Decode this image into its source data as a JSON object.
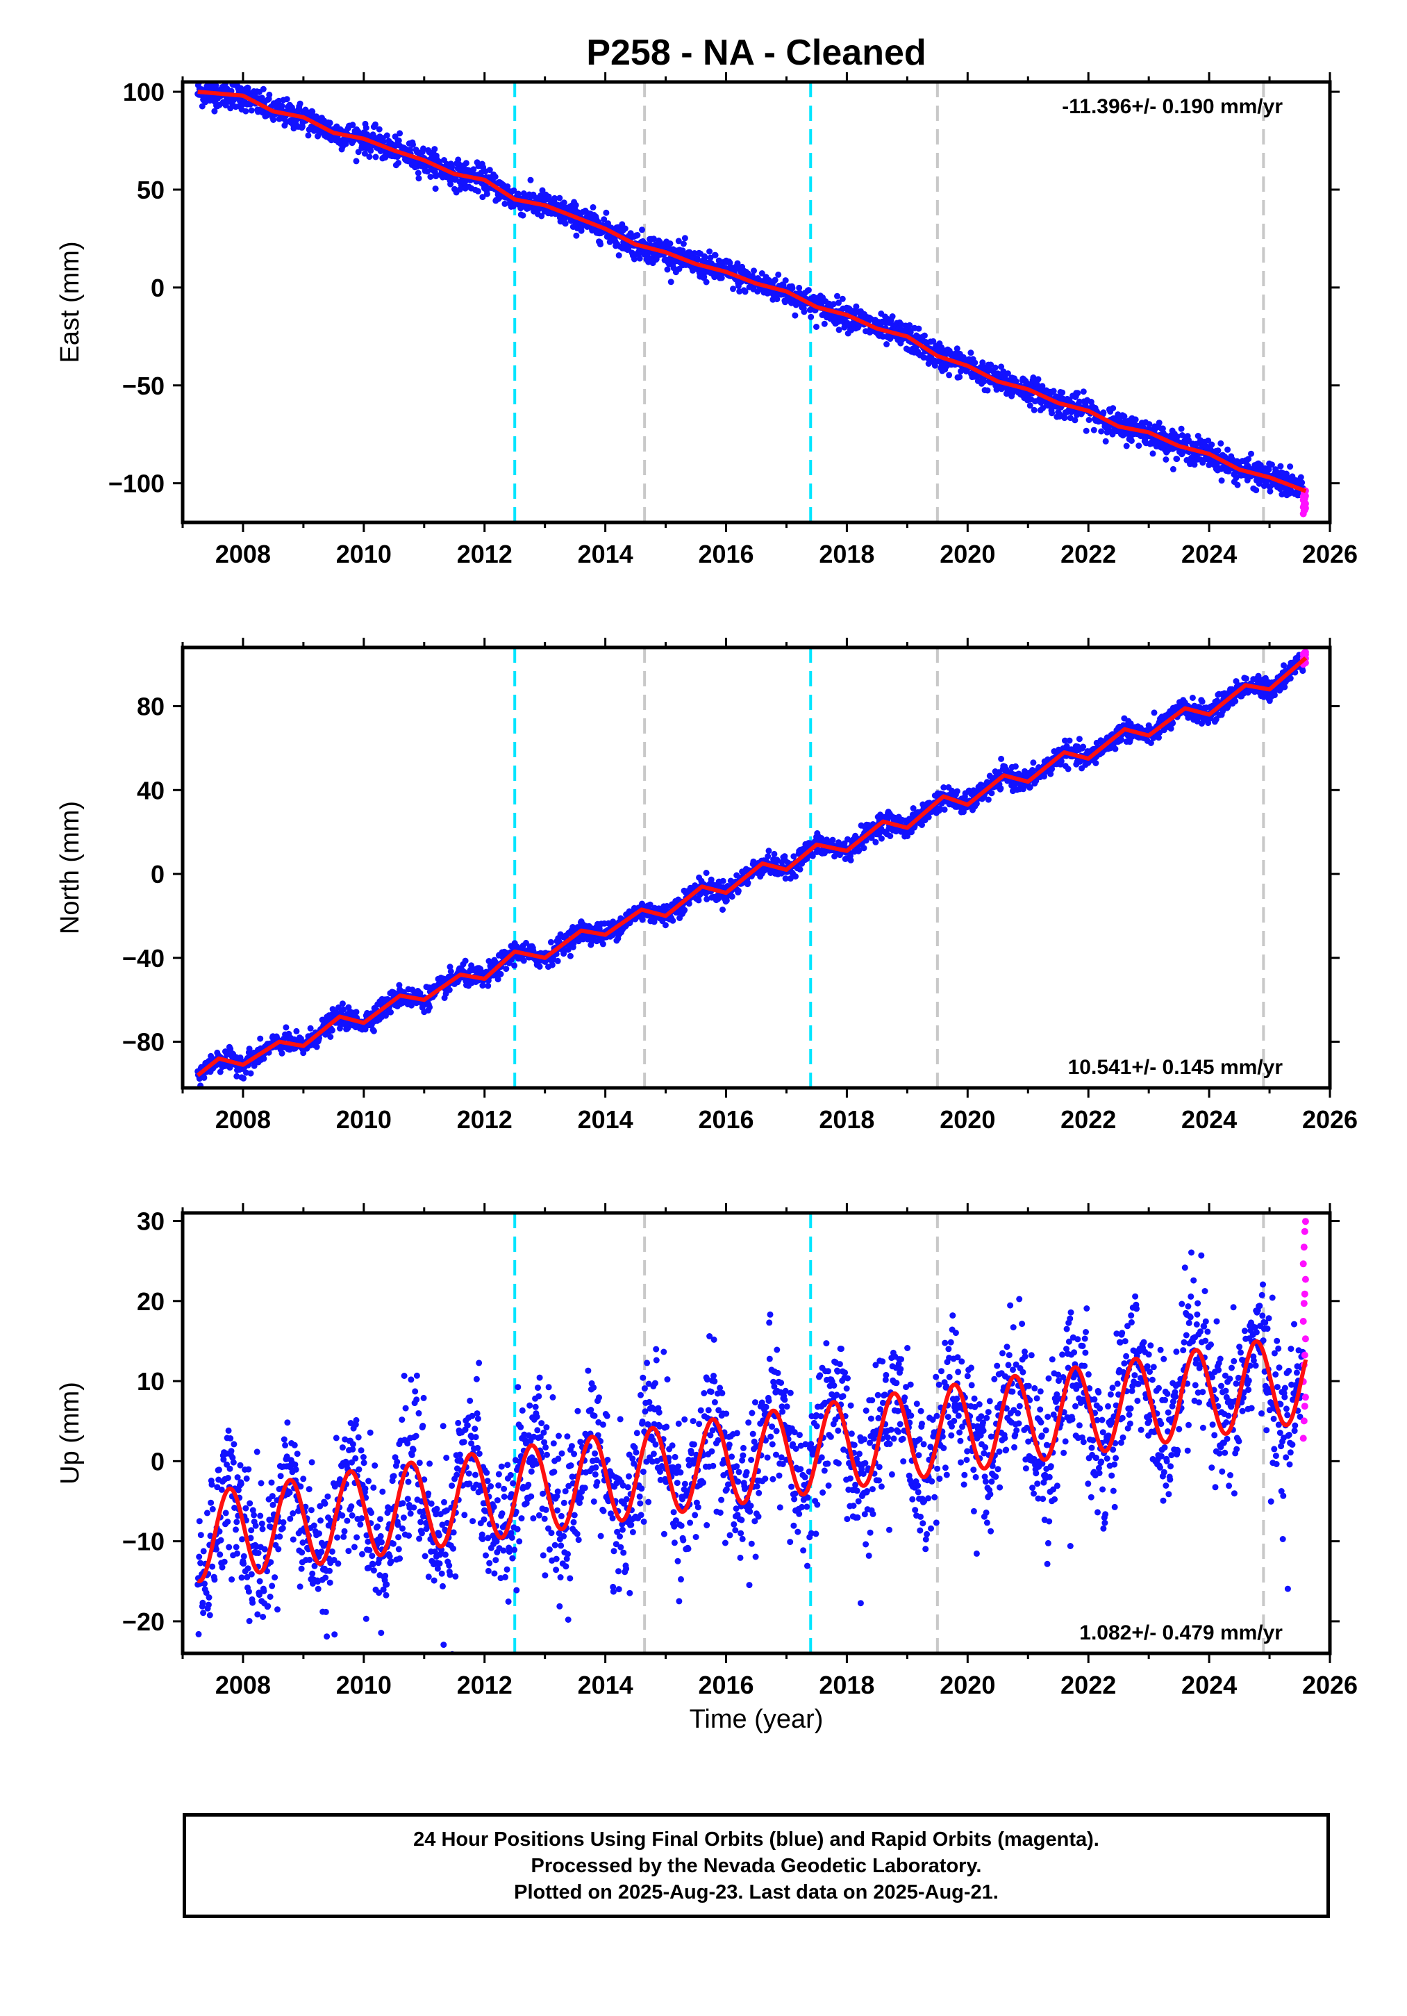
{
  "title": "P258  - NA - Cleaned",
  "colors": {
    "final": "#1212ff",
    "rapid": "#ff10ff",
    "model": "#ff1010",
    "cyan": "#00e5ff",
    "gray": "#c8c8c8"
  },
  "footer": {
    "line1": "24 Hour Positions Using Final Orbits (blue) and Rapid Orbits (magenta).",
    "line2": "Processed by the Nevada Geodetic Laboratory.",
    "line3": "Plotted on 2025-Aug-23. Last data on 2025-Aug-21."
  },
  "chart_data": [
    {
      "type": "scatter",
      "component": "east",
      "ylabel": "East (mm)",
      "xlabel": "",
      "xlim": [
        2007.0,
        2026.0
      ],
      "ylim": [
        -120,
        105
      ],
      "xticks": [
        "2008",
        "2010",
        "2012",
        "2014",
        "2016",
        "2018",
        "2020",
        "2022",
        "2024",
        "2026"
      ],
      "yticks": [
        "100",
        "50",
        "0",
        "−50",
        "−100"
      ],
      "ytick_values": [
        100,
        50,
        0,
        -50,
        -100
      ],
      "rate_label": "-11.396+/- 0.190 mm/yr",
      "rate_position": "top-right",
      "model_points": [
        [
          2007.25,
          100
        ],
        [
          2008.0,
          98
        ],
        [
          2008.5,
          90
        ],
        [
          2009.0,
          87
        ],
        [
          2009.5,
          79
        ],
        [
          2010.0,
          76
        ],
        [
          2010.5,
          70
        ],
        [
          2011.0,
          65
        ],
        [
          2011.5,
          58
        ],
        [
          2012.0,
          55
        ],
        [
          2012.5,
          45
        ],
        [
          2013.0,
          42
        ],
        [
          2013.5,
          36
        ],
        [
          2014.0,
          30
        ],
        [
          2014.5,
          22
        ],
        [
          2015.0,
          18
        ],
        [
          2015.5,
          12
        ],
        [
          2016.0,
          8
        ],
        [
          2016.5,
          2
        ],
        [
          2017.0,
          -2
        ],
        [
          2017.5,
          -10
        ],
        [
          2018.0,
          -14
        ],
        [
          2018.5,
          -21
        ],
        [
          2019.0,
          -25
        ],
        [
          2019.5,
          -35
        ],
        [
          2020.0,
          -40
        ],
        [
          2020.5,
          -48
        ],
        [
          2021.0,
          -52
        ],
        [
          2021.5,
          -59
        ],
        [
          2022.0,
          -63
        ],
        [
          2022.5,
          -71
        ],
        [
          2023.0,
          -74
        ],
        [
          2023.5,
          -81
        ],
        [
          2024.0,
          -85
        ],
        [
          2024.5,
          -93
        ],
        [
          2025.0,
          -97
        ],
        [
          2025.6,
          -104
        ]
      ],
      "rapid_range": [
        -115,
        -104
      ],
      "noise": 3.5
    },
    {
      "type": "scatter",
      "component": "north",
      "ylabel": "North (mm)",
      "xlabel": "",
      "xlim": [
        2007.0,
        2026.0
      ],
      "ylim": [
        -102,
        108
      ],
      "xticks": [
        "2008",
        "2010",
        "2012",
        "2014",
        "2016",
        "2018",
        "2020",
        "2022",
        "2024",
        "2026"
      ],
      "yticks": [
        "80",
        "40",
        "0",
        "−40",
        "−80"
      ],
      "ytick_values": [
        80,
        40,
        0,
        -40,
        -80
      ],
      "rate_label": "10.541+/- 0.145 mm/yr",
      "rate_position": "bottom-right",
      "model_points": [
        [
          2007.25,
          -96
        ],
        [
          2007.6,
          -88
        ],
        [
          2008.0,
          -91
        ],
        [
          2008.6,
          -80
        ],
        [
          2009.0,
          -82
        ],
        [
          2009.6,
          -68
        ],
        [
          2010.0,
          -71
        ],
        [
          2010.6,
          -58
        ],
        [
          2011.0,
          -60
        ],
        [
          2011.6,
          -48
        ],
        [
          2012.0,
          -50
        ],
        [
          2012.5,
          -37
        ],
        [
          2013.0,
          -40
        ],
        [
          2013.6,
          -27
        ],
        [
          2014.0,
          -29
        ],
        [
          2014.6,
          -17
        ],
        [
          2015.0,
          -20
        ],
        [
          2015.6,
          -6
        ],
        [
          2016.0,
          -9
        ],
        [
          2016.6,
          5
        ],
        [
          2017.0,
          2
        ],
        [
          2017.5,
          14
        ],
        [
          2018.0,
          11
        ],
        [
          2018.6,
          25
        ],
        [
          2019.0,
          22
        ],
        [
          2019.6,
          37
        ],
        [
          2020.0,
          33
        ],
        [
          2020.6,
          47
        ],
        [
          2021.0,
          44
        ],
        [
          2021.6,
          58
        ],
        [
          2022.0,
          55
        ],
        [
          2022.6,
          69
        ],
        [
          2023.0,
          66
        ],
        [
          2023.6,
          79
        ],
        [
          2024.0,
          76
        ],
        [
          2024.6,
          90
        ],
        [
          2025.0,
          88
        ],
        [
          2025.6,
          103
        ]
      ],
      "rapid_range": [
        100,
        106
      ],
      "noise": 2.5
    },
    {
      "type": "scatter",
      "component": "up",
      "ylabel": "Up (mm)",
      "xlabel": "Time (year)",
      "xlim": [
        2007.0,
        2026.0
      ],
      "ylim": [
        -24,
        31
      ],
      "xticks": [
        "2008",
        "2010",
        "2012",
        "2014",
        "2016",
        "2018",
        "2020",
        "2022",
        "2024",
        "2026"
      ],
      "yticks": [
        "30",
        "20",
        "10",
        "0",
        "−10",
        "−20"
      ],
      "ytick_values": [
        30,
        20,
        10,
        0,
        -10,
        -20
      ],
      "rate_label": "1.082+/- 0.479 mm/yr",
      "rate_position": "bottom-right",
      "model": {
        "rate": 1.082,
        "amplitude": 5.5,
        "period_years": 1.0,
        "peak_phase": 0.78,
        "start": 2007.25,
        "end": 2025.6
      },
      "rapid_range": [
        3,
        30
      ],
      "noise": 4.5
    }
  ],
  "offsets": {
    "cyan": [
      2012.5,
      2017.4
    ],
    "gray": [
      2014.65,
      2019.5,
      2024.9
    ]
  }
}
